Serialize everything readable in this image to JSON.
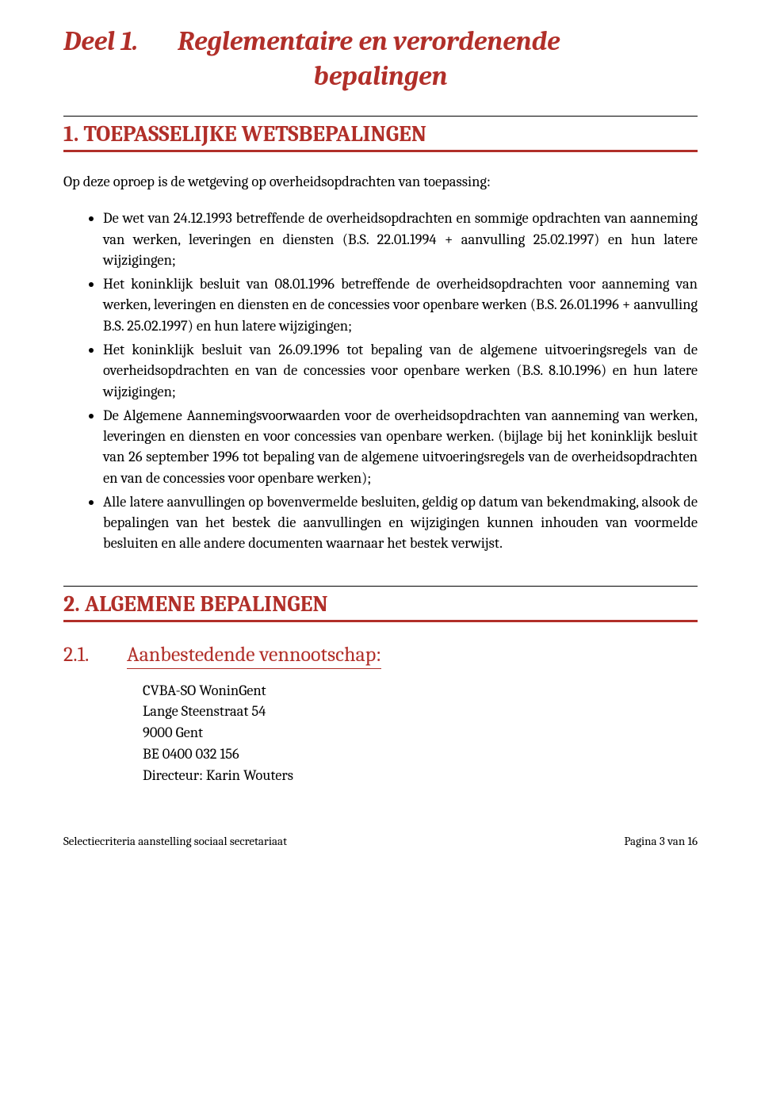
{
  "colors": {
    "accent": "#b12f29",
    "text": "#000000",
    "background": "#ffffff"
  },
  "part": {
    "prefix": "Deel 1.",
    "title_line1": "Reglementaire en verordenende",
    "title_line2": "bepalingen"
  },
  "section1": {
    "number": "1.",
    "title": "TOEPASSELIJKE WETSBEPALINGEN",
    "intro": "Op deze oproep is de wetgeving op overheidsopdrachten van toepassing:",
    "bullets": [
      "De wet van 24.12.1993 betreffende de overheidsopdrachten en sommige opdrachten van aanneming van werken, leveringen en diensten (B.S. 22.01.1994 + aanvulling 25.02.1997) en hun latere wijzigingen;",
      "Het koninklijk besluit van 08.01.1996 betreffende de overheidsopdrachten voor aanneming van werken, leveringen en diensten en de concessies voor openbare werken (B.S. 26.01.1996 + aanvulling B.S. 25.02.1997) en hun latere wijzigingen;",
      "Het koninklijk besluit van 26.09.1996 tot bepaling van de algemene uitvoeringsregels van de overheidsopdrachten en van de concessies voor openbare werken (B.S. 8.10.1996) en hun latere wijzigingen;",
      "De Algemene Aannemingsvoorwaarden voor de overheidsopdrachten van aanneming van werken, leveringen en diensten en voor concessies van openbare werken. (bijlage bij het koninklijk besluit van 26 september 1996 tot bepaling van de algemene uitvoeringsregels van de overheidsopdrachten en van de concessies voor openbare werken);",
      "Alle latere aanvullingen op bovenvermelde besluiten, geldig op datum van bekendmaking, alsook de bepalingen van het bestek die aanvullingen en wijzigingen kunnen inhouden van voormelde besluiten en alle andere documenten waarnaar het bestek verwijst."
    ]
  },
  "section2": {
    "number": "2.",
    "title": "ALGEMENE BEPALINGEN",
    "sub": {
      "number": "2.1.",
      "title": "Aanbestedende vennootschap:"
    },
    "company": {
      "name": "CVBA-SO WoninGent",
      "street": "Lange Steenstraat 54",
      "city": "9000 Gent",
      "vat": "BE 0400 032 156",
      "director": "Directeur: Karin Wouters"
    }
  },
  "footer": {
    "left": "Selectiecriteria aanstelling sociaal secretariaat",
    "right": "Pagina 3 van 16"
  }
}
